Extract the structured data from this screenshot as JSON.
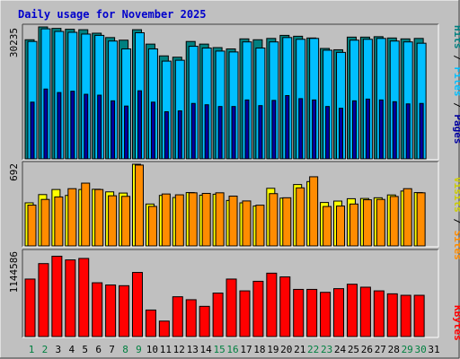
{
  "title": "Daily usage for November 2025",
  "colors": {
    "outer_bg": "#c0c0c0",
    "panel_bg": "#c0c0c0",
    "title": "#0000cc",
    "hits": "#008080",
    "files": "#00bfff",
    "pages": "#0000a0",
    "visits": "#ffff00",
    "sites": "#ff8c00",
    "kbytes": "#ff0000",
    "day_weekday": "#000000",
    "day_weekend": "#008040"
  },
  "chart_data": [
    {
      "type": "bar",
      "name": "hits-files-pages",
      "categories": [
        "1",
        "2",
        "3",
        "4",
        "5",
        "6",
        "7",
        "8",
        "9",
        "10",
        "11",
        "12",
        "13",
        "14",
        "15",
        "16",
        "17",
        "18",
        "19",
        "20",
        "21",
        "22",
        "23",
        "24",
        "25",
        "26",
        "27",
        "28",
        "29",
        "30",
        "31"
      ],
      "max_label": "30235",
      "ylim": [
        0,
        30235
      ],
      "series": [
        {
          "name": "Hits",
          "values": [
            27300,
            30235,
            29900,
            29700,
            29600,
            28800,
            27800,
            27200,
            29600,
            26300,
            23600,
            23300,
            26900,
            26300,
            25500,
            25200,
            27500,
            27300,
            27600,
            28300,
            28100,
            27700,
            25300,
            25000,
            27900,
            27900,
            28000,
            27700,
            27500,
            27600,
            0
          ]
        },
        {
          "name": "Files",
          "values": [
            26900,
            29800,
            29200,
            29000,
            28600,
            28300,
            27000,
            25200,
            28900,
            25200,
            22400,
            22600,
            25800,
            25400,
            24700,
            24500,
            26800,
            25400,
            26800,
            27800,
            27400,
            27600,
            24900,
            24400,
            27200,
            27400,
            27600,
            27000,
            26800,
            26500,
            0
          ]
        },
        {
          "name": "Pages",
          "values": [
            13000,
            16000,
            15200,
            15500,
            14800,
            14600,
            13300,
            12100,
            15600,
            13000,
            10800,
            11000,
            12700,
            12400,
            12000,
            12000,
            13500,
            12200,
            13400,
            14500,
            13800,
            13500,
            12000,
            11600,
            13300,
            13700,
            13500,
            13100,
            12600,
            12700,
            0
          ]
        }
      ],
      "vertical_label": [
        "Pages",
        "Files",
        "Hits"
      ]
    },
    {
      "type": "bar",
      "name": "visits-sites",
      "categories": [
        "1",
        "2",
        "3",
        "4",
        "5",
        "6",
        "7",
        "8",
        "9",
        "10",
        "11",
        "12",
        "13",
        "14",
        "15",
        "16",
        "17",
        "18",
        "19",
        "20",
        "21",
        "22",
        "23",
        "24",
        "25",
        "26",
        "27",
        "28",
        "29",
        "30",
        "31"
      ],
      "max_label": "692",
      "ylim": [
        0,
        692
      ],
      "series": [
        {
          "name": "Visits",
          "values": [
            365,
            435,
            478,
            428,
            478,
            480,
            458,
            448,
            692,
            355,
            428,
            410,
            452,
            430,
            438,
            385,
            365,
            338,
            488,
            405,
            520,
            545,
            368,
            380,
            400,
            402,
            408,
            432,
            465,
            452,
            0
          ]
        },
        {
          "name": "Sites",
          "values": [
            346,
            394,
            415,
            485,
            532,
            478,
            425,
            420,
            685,
            335,
            440,
            433,
            450,
            445,
            450,
            422,
            381,
            345,
            443,
            408,
            492,
            586,
            334,
            338,
            355,
            391,
            394,
            419,
            485,
            450,
            0
          ]
        }
      ],
      "vertical_label": [
        "Sites",
        "Visits"
      ]
    },
    {
      "type": "bar",
      "name": "kbytes",
      "categories": [
        "1",
        "2",
        "3",
        "4",
        "5",
        "6",
        "7",
        "8",
        "9",
        "10",
        "11",
        "12",
        "13",
        "14",
        "15",
        "16",
        "17",
        "18",
        "19",
        "20",
        "21",
        "22",
        "23",
        "24",
        "25",
        "26",
        "27",
        "28",
        "29",
        "30",
        "31"
      ],
      "max_label": "1144586",
      "ylim": [
        0,
        1144586
      ],
      "series": [
        {
          "name": "KBytes",
          "values": [
            780000,
            990000,
            1090000,
            1040000,
            1060000,
            730000,
            700000,
            690000,
            870000,
            360000,
            210000,
            540000,
            500000,
            410000,
            590000,
            780000,
            620000,
            750000,
            860000,
            810000,
            640000,
            640000,
            600000,
            650000,
            710000,
            670000,
            620000,
            580000,
            560000,
            560000,
            0
          ]
        }
      ],
      "vertical_label": [
        "KBytes"
      ]
    }
  ]
}
